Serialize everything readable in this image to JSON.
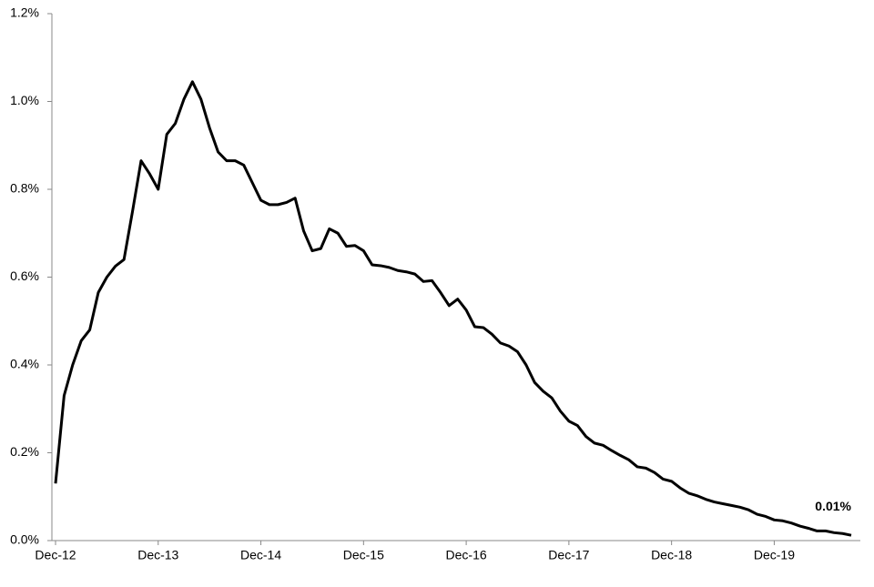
{
  "chart_data": {
    "type": "line",
    "categories": [
      "Dec-12",
      null,
      null,
      null,
      null,
      null,
      null,
      null,
      null,
      null,
      null,
      null,
      "Dec-13",
      null,
      null,
      null,
      null,
      null,
      null,
      null,
      null,
      null,
      null,
      null,
      "Dec-14",
      null,
      null,
      null,
      null,
      null,
      null,
      null,
      null,
      null,
      null,
      null,
      "Dec-15",
      null,
      null,
      null,
      null,
      null,
      null,
      null,
      null,
      null,
      null,
      null,
      "Dec-16",
      null,
      null,
      null,
      null,
      null,
      null,
      null,
      null,
      null,
      null,
      null,
      "Dec-17",
      null,
      null,
      null,
      null,
      null,
      null,
      null,
      null,
      null,
      null,
      null,
      "Dec-18",
      null,
      null,
      null,
      null,
      null,
      null,
      null,
      null,
      null,
      null,
      null,
      "Dec-19",
      null,
      null,
      null,
      null,
      null,
      null,
      null,
      null,
      null
    ],
    "values": [
      0.13,
      0.33,
      0.4,
      0.455,
      0.48,
      0.565,
      0.6,
      0.625,
      0.64,
      0.75,
      0.865,
      0.835,
      0.8,
      0.925,
      0.95,
      1.005,
      1.045,
      1.005,
      0.94,
      0.885,
      0.865,
      0.865,
      0.855,
      0.815,
      0.775,
      0.765,
      0.765,
      0.77,
      0.78,
      0.705,
      0.66,
      0.665,
      0.71,
      0.7,
      0.67,
      0.672,
      0.66,
      0.628,
      0.626,
      0.622,
      0.615,
      0.612,
      0.607,
      0.59,
      0.592,
      0.565,
      0.535,
      0.55,
      0.525,
      0.487,
      0.485,
      0.47,
      0.45,
      0.443,
      0.43,
      0.4,
      0.36,
      0.34,
      0.325,
      0.295,
      0.272,
      0.262,
      0.237,
      0.222,
      0.217,
      0.205,
      0.194,
      0.184,
      0.168,
      0.165,
      0.155,
      0.14,
      0.135,
      0.12,
      0.108,
      0.102,
      0.094,
      0.088,
      0.084,
      0.08,
      0.076,
      0.07,
      0.06,
      0.055,
      0.047,
      0.045,
      0.04,
      0.033,
      0.028,
      0.022,
      0.022,
      0.018,
      0.016,
      0.012
    ],
    "value_labels": [
      null,
      null,
      null,
      null,
      null,
      null,
      null,
      null,
      null,
      null,
      null,
      null,
      null,
      null,
      null,
      null,
      null,
      null,
      null,
      null,
      null,
      null,
      null,
      null,
      null,
      null,
      null,
      null,
      null,
      null,
      null,
      null,
      null,
      null,
      null,
      null,
      null,
      null,
      null,
      null,
      null,
      null,
      null,
      null,
      null,
      null,
      null,
      null,
      null,
      null,
      null,
      null,
      null,
      null,
      null,
      null,
      null,
      null,
      null,
      null,
      null,
      null,
      null,
      null,
      null,
      null,
      null,
      null,
      null,
      null,
      null,
      null,
      null,
      null,
      null,
      null,
      null,
      null,
      null,
      null,
      null,
      null,
      null,
      null,
      null,
      null,
      null,
      null,
      null,
      null,
      null,
      null,
      null,
      "0.01%"
    ],
    "color": "#000000",
    "ylim": [
      0,
      1.2
    ],
    "yticks": [
      {
        "value": 0,
        "label": "0.0%"
      },
      {
        "value": 0.2,
        "label": "0.2%"
      },
      {
        "value": 0.4,
        "label": "0.4%"
      },
      {
        "value": 0.6,
        "label": "0.6%"
      },
      {
        "value": 0.8,
        "label": "0.8%"
      },
      {
        "value": 1.0,
        "label": "1.0%"
      },
      {
        "value": 1.2,
        "label": "1.2%"
      }
    ],
    "grid": false
  }
}
